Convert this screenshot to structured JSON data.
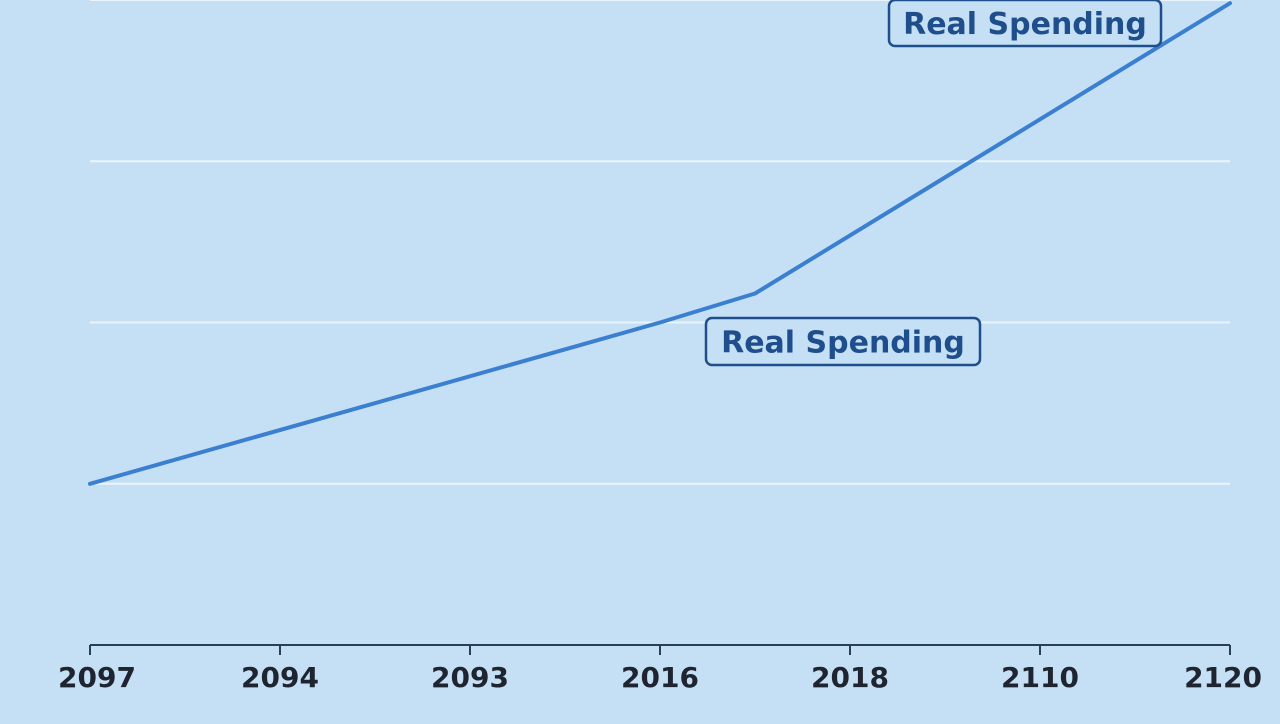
{
  "chart_data": {
    "type": "line",
    "title": "",
    "xlabel": "",
    "ylabel": "",
    "x_tick_labels": [
      "2097",
      "2094",
      "2093",
      "2016",
      "2018",
      "2110",
      "2120"
    ],
    "ylim": [
      0,
      4
    ],
    "grid": true,
    "series": [
      {
        "points": [
          {
            "x": 0,
            "y": 1.0
          },
          {
            "x": 3,
            "y": 2.0
          },
          {
            "x": 3.5,
            "y": 2.18
          },
          {
            "x": 6,
            "y": 3.98
          }
        ]
      }
    ],
    "annotations": [
      {
        "text": "Real Spending",
        "near": "end-of-line"
      },
      {
        "text": "Real Spending",
        "near": "line-bend"
      }
    ]
  },
  "colors": {
    "background": "#c5e0f4",
    "line": "#3b7fd0",
    "annotation": "#1f4e8c",
    "grid": "#eaf4fc",
    "axis": "#2b3e57"
  }
}
